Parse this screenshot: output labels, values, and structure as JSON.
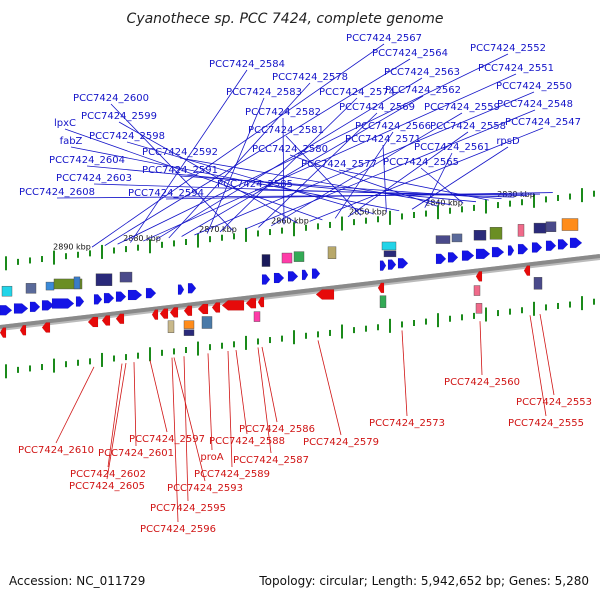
{
  "title": "Cyanothece sp. PCC 7424, complete genome",
  "footer": {
    "accession": "Accession: NC_011729",
    "summary": "Topology: circular; Length: 5,942,652 bp; Genes: 5,280"
  },
  "colors": {
    "forward": "#1414e6",
    "reverse": "#e60a0a",
    "label_forward": "#1414c8",
    "label_reverse": "#d01414",
    "backbone": "#8a8a8a",
    "ticks": "#1a8a1a"
  },
  "kbp_ticks": [
    "2890 kbp",
    "2880 kbp",
    "2870 kbp",
    "2860 kbp",
    "2850 kbp",
    "2840 kbp",
    "2830 kbp"
  ],
  "labels_forward": [
    "PCC7424_2567",
    "PCC7424_2564",
    "PCC7424_2552",
    "PCC7424_2584",
    "PCC7424_2551",
    "PCC7424_2563",
    "PCC7424_2578",
    "PCC7424_2562",
    "PCC7424_2550",
    "PCC7424_2583",
    "PCC7424_2574",
    "PCC7424_2600",
    "PCC7424_2548",
    "PCC7424_2569",
    "PCC7424_2559",
    "PCC7424_2582",
    "PCC7424_2599",
    "PCC7424_2547",
    "lpxC",
    "PCC7424_2566",
    "PCC7424_2558",
    "PCC7424_2581",
    "PCC7424_2598",
    "PCC7424_2571",
    "fabZ",
    "rpsD",
    "PCC7424_2561",
    "PCC7424_2580",
    "PCC7424_2592",
    "PCC7424_2565",
    "PCC7424_2604",
    "PCC7424_2577",
    "PCC7424_2591",
    "PCC7424_2603",
    "PCC7424_2585",
    "PCC7424_2608",
    "PCC7424_2594"
  ],
  "labels_reverse": [
    "PCC7424_2560",
    "PCC7424_2553",
    "PCC7424_2555",
    "PCC7424_2573",
    "PCC7424_2586",
    "PCC7424_2597",
    "PCC7424_2588",
    "PCC7424_2579",
    "PCC7424_2601",
    "PCC7424_2610",
    "proA",
    "PCC7424_2587",
    "PCC7424_2589",
    "PCC7424_2602",
    "PCC7424_2605",
    "PCC7424_2593",
    "PCC7424_2595",
    "PCC7424_2596"
  ]
}
